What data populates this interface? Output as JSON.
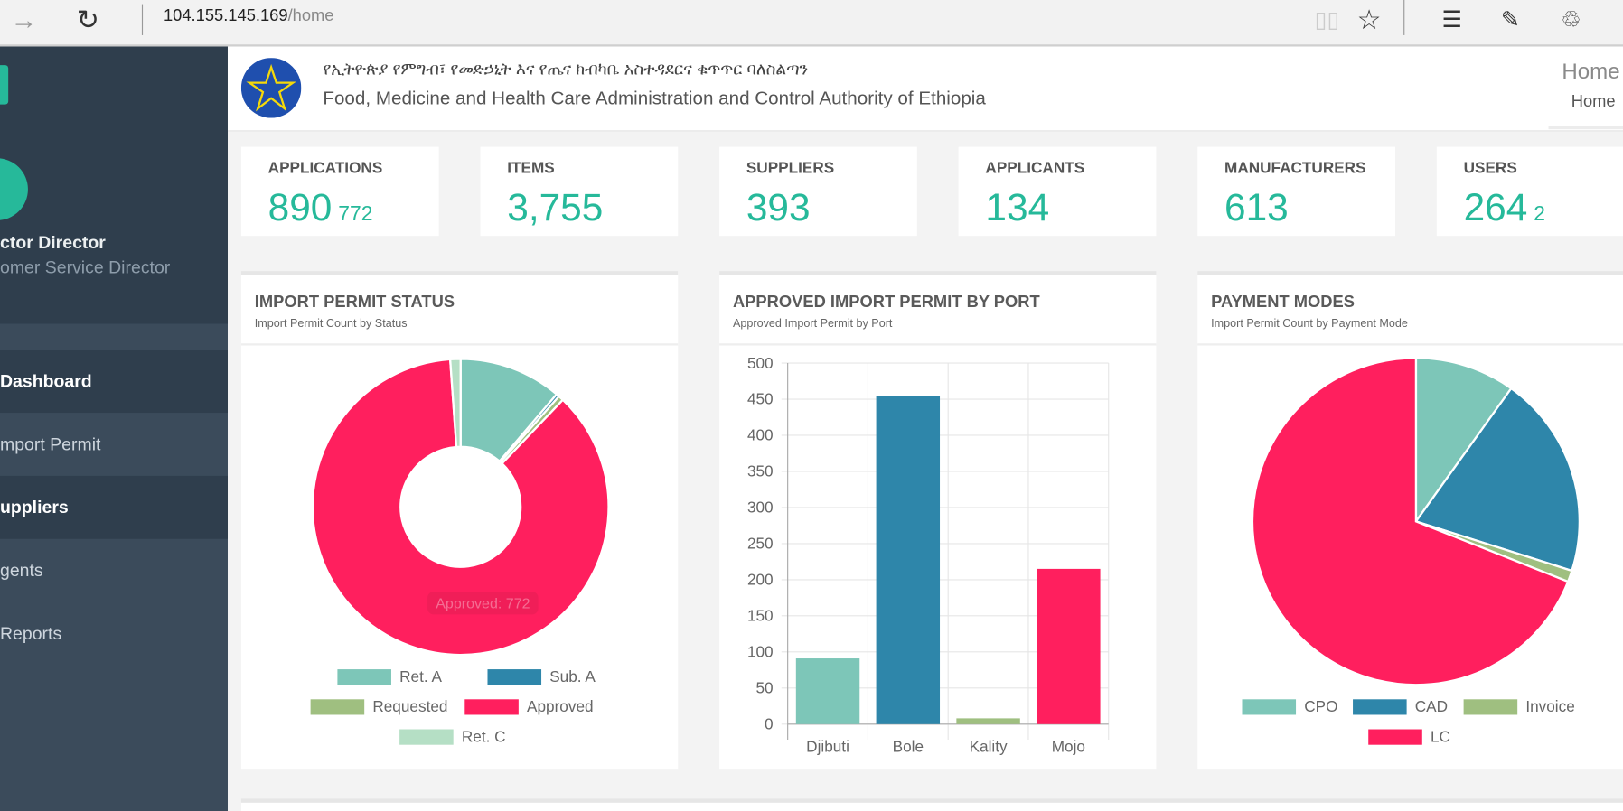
{
  "browser": {
    "url_host": "104.155.145.169",
    "url_path": "/home",
    "icons": [
      "forward-icon",
      "refresh-icon",
      "reading-view-icon",
      "favorite-star-icon",
      "hub-icon",
      "web-note-icon",
      "share-icon"
    ]
  },
  "sidebar": {
    "user_name": "ctor Director",
    "user_role": "omer Service Director",
    "items": [
      {
        "label": "Dashboard",
        "active": true
      },
      {
        "label": "mport Permit"
      },
      {
        "label": "uppliers",
        "active": true
      },
      {
        "label": "gents"
      },
      {
        "label": "Reports"
      }
    ]
  },
  "header": {
    "title_amharic": "የኢትዮጵያ የምግብ፣ የመድኃኒት እና የጤና ክብካቤ አስተዳደርና ቁጥጥር ባለስልጣን",
    "title_english": "Food, Medicine and Health Care Administration and Control Authority of Ethiopia",
    "page_title": "Home",
    "breadcrumb": "Home"
  },
  "stats": [
    {
      "label": "APPLICATIONS",
      "value": "890",
      "sub": "772"
    },
    {
      "label": "ITEMS",
      "value": "3,755",
      "sub": ""
    },
    {
      "label": "SUPPLIERS",
      "value": "393",
      "sub": ""
    },
    {
      "label": "APPLICANTS",
      "value": "134",
      "sub": ""
    },
    {
      "label": "MANUFACTURERS",
      "value": "613",
      "sub": ""
    },
    {
      "label": "USERS",
      "value": "264",
      "sub": "2"
    }
  ],
  "colors": {
    "accent": "#26b99a",
    "teal": "#7dc6b8",
    "blue": "#2e86aa",
    "green": "#9fbf80",
    "red": "#ff1f5e",
    "lightgreen": "#b5dfc5"
  },
  "chart_data": [
    {
      "type": "pie",
      "variant": "doughnut",
      "title": "IMPORT PERMIT STATUS",
      "subtitle": "Import Permit Count by Status",
      "categories": [
        "Ret. A",
        "Sub. A",
        "Requested",
        "Approved",
        "Ret. C"
      ],
      "values": [
        100,
        3,
        5,
        772,
        10
      ],
      "colors": [
        "#7dc6b8",
        "#2e86aa",
        "#9fbf80",
        "#ff1f5e",
        "#b5dfc5"
      ],
      "tooltip": "Approved: 772",
      "legend": "bottom"
    },
    {
      "type": "bar",
      "title": "APPROVED IMPORT PERMIT BY PORT",
      "subtitle": "Approved Import Permit by Port",
      "categories": [
        "Djibuti",
        "Bole",
        "Kality",
        "Mojo"
      ],
      "values": [
        91,
        455,
        8,
        215
      ],
      "colors": [
        "#7dc6b8",
        "#2e86aa",
        "#9fbf80",
        "#ff1f5e"
      ],
      "ylim": [
        0,
        500
      ],
      "yticks": [
        "0",
        "50",
        "100",
        "150",
        "200",
        "250",
        "300",
        "350",
        "400",
        "450",
        "500"
      ],
      "grid": true
    },
    {
      "type": "pie",
      "title": "PAYMENT MODES",
      "subtitle": "Import Permit Count by Payment Mode",
      "categories": [
        "CPO",
        "CAD",
        "Invoice",
        "LC"
      ],
      "values": [
        88,
        178,
        10,
        614
      ],
      "colors": [
        "#7dc6b8",
        "#2e86aa",
        "#9fbf80",
        "#ff1f5e"
      ],
      "legend": "bottom"
    }
  ]
}
